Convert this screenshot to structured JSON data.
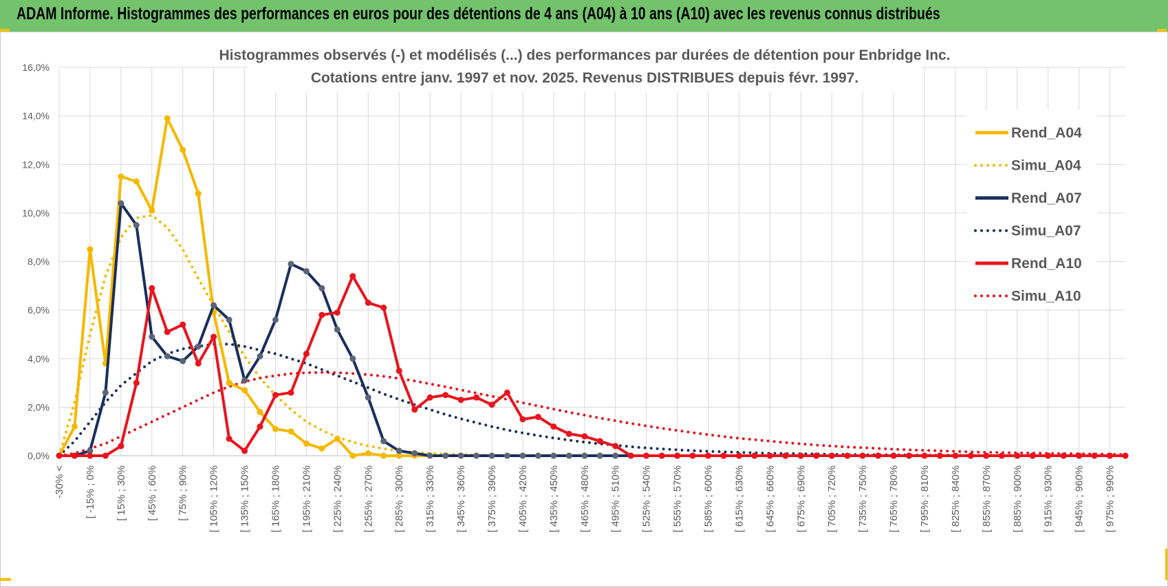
{
  "header": {
    "title": "ADAM Informe. Histogrammes des performances en euros pour des détentions de 4 ans (A04) à 10 ans (A10) avec les revenus connus distribués"
  },
  "chart_data": {
    "type": "line",
    "title_lines": [
      "Histogrammes observés (-) et modélisés (...) des performances par durées de détention pour Enbridge Inc.",
      "Cotations entre janv. 1997 et nov. 2025. Revenus DISTRIBUES depuis févr. 1997."
    ],
    "ylim": [
      0,
      16
    ],
    "y_ticks": [
      "0,0%",
      "2,0%",
      "4,0%",
      "6,0%",
      "8,0%",
      "10,0%",
      "12,0%",
      "14,0%",
      "16,0%"
    ],
    "x_tick_labels": [
      "-30% <",
      "[ -15% ; 0%",
      "[ 15% ; 30%",
      "[ 45% ; 60%",
      "[ 75% ; 90%",
      "[ 105% ; 120%",
      "[ 135% ; 150%",
      "[ 165% ; 180%",
      "[ 195% ; 210%",
      "[ 225% ; 240%",
      "[ 255% ; 270%",
      "[ 285% ; 300%",
      "[ 315% ; 330%",
      "[ 345% ; 360%",
      "[ 375% ; 390%",
      "[ 405% ; 420%",
      "[ 435% ; 450%",
      "[ 465% ; 480%",
      "[ 495% ; 510%",
      "[ 525% ; 540%",
      "[ 555% ; 570%",
      "[ 585% ; 600%",
      "[ 615% ; 630%",
      "[ 645% ; 660%",
      "[ 675% ; 690%",
      "[ 705% ; 720%",
      "[ 735% ; 750%",
      "[ 765% ; 780%",
      "[ 795% ; 810%",
      "[ 825% ; 840%",
      "[ 855% ; 870%",
      "[ 885% ; 900%",
      "[ 915% ; 930%",
      "[ 945% ; 960%",
      "[ 975% ; 990%"
    ],
    "n_bins": 70,
    "series": [
      {
        "name": "Rend_A04",
        "style": "solid",
        "color": "#f5b800",
        "values": [
          0.0,
          1.2,
          8.5,
          3.8,
          11.5,
          11.3,
          10.1,
          13.9,
          12.6,
          10.8,
          5.9,
          3.0,
          2.7,
          1.8,
          1.1,
          1.0,
          0.5,
          0.3,
          0.7,
          0.0,
          0.1,
          0.0,
          0.0,
          0.0,
          0.0,
          0.0,
          0.0,
          0.0,
          0.0,
          0.0,
          0.0,
          0.0,
          0.0,
          0.0,
          0.0,
          0.0,
          0.0,
          0.0,
          0.0,
          0.0,
          0.0,
          0.0,
          0.0,
          0.0,
          0.0,
          0.0,
          0.0,
          0.0,
          0.0,
          0.0,
          0.0,
          0.0,
          0.0,
          0.0,
          0.0,
          0.0,
          0.0,
          0.0,
          0.0,
          0.0,
          0.0,
          0.0,
          0.0,
          0.0,
          0.0,
          0.0,
          0.0,
          0.0,
          0.0,
          0.0
        ]
      },
      {
        "name": "Simu_A04",
        "style": "dotted",
        "color": "#f5b800",
        "values": [
          0.0,
          2.2,
          5.0,
          7.4,
          9.0,
          9.8,
          9.9,
          9.4,
          8.5,
          7.3,
          6.2,
          5.1,
          4.1,
          3.2,
          2.5,
          1.9,
          1.4,
          1.05,
          0.77,
          0.56,
          0.4,
          0.29,
          0.2,
          0.14,
          0.1,
          0.07,
          0.05,
          0.03,
          0.02,
          0.0,
          0.0,
          0.0,
          0.0,
          0.0,
          0.0,
          0.0,
          0.0,
          0.0,
          0.0,
          0.0,
          0.0,
          0.0,
          0.0,
          0.0,
          0.0,
          0.0,
          0.0,
          0.0,
          0.0,
          0.0,
          0.0,
          0.0,
          0.0,
          0.0,
          0.0,
          0.0,
          0.0,
          0.0,
          0.0,
          0.0,
          0.0,
          0.0,
          0.0,
          0.0,
          0.0,
          0.0,
          0.0,
          0.0,
          0.0,
          0.0
        ]
      },
      {
        "name": "Rend_A07",
        "style": "solid",
        "color": "#1a2e5c",
        "values": [
          0.0,
          0.0,
          0.2,
          2.6,
          10.4,
          9.5,
          4.9,
          4.1,
          3.9,
          4.5,
          6.2,
          5.6,
          3.1,
          4.1,
          5.6,
          7.9,
          7.6,
          6.9,
          5.2,
          4.0,
          2.4,
          0.6,
          0.2,
          0.1,
          0.0,
          0.0,
          0.0,
          0.0,
          0.0,
          0.0,
          0.0,
          0.0,
          0.0,
          0.0,
          0.0,
          0.0,
          0.0,
          0.0,
          0.0,
          0.0,
          0.0,
          0.0,
          0.0,
          0.0,
          0.0,
          0.0,
          0.0,
          0.0,
          0.0,
          0.0,
          0.0,
          0.0,
          0.0,
          0.0,
          0.0,
          0.0,
          0.0,
          0.0,
          0.0,
          0.0,
          0.0,
          0.0,
          0.0,
          0.0,
          0.0,
          0.0,
          0.0,
          0.0,
          0.0,
          0.0
        ]
      },
      {
        "name": "Simu_A07",
        "style": "dotted",
        "color": "#1a2e5c",
        "values": [
          0.0,
          0.6,
          1.4,
          2.2,
          2.9,
          3.4,
          3.9,
          4.2,
          4.4,
          4.5,
          4.6,
          4.6,
          4.5,
          4.35,
          4.2,
          4.0,
          3.8,
          3.55,
          3.3,
          3.05,
          2.8,
          2.55,
          2.32,
          2.1,
          1.9,
          1.7,
          1.52,
          1.36,
          1.2,
          1.06,
          0.94,
          0.83,
          0.73,
          0.64,
          0.56,
          0.49,
          0.43,
          0.37,
          0.32,
          0.28,
          0.24,
          0.21,
          0.18,
          0.16,
          0.14,
          0.12,
          0.1,
          0.09,
          0.08,
          0.07,
          0.06,
          0.05,
          0.04,
          0.04,
          0.03,
          0.03,
          0.02,
          0.02,
          0.02,
          0.01,
          0.01,
          0.01,
          0.01,
          0.01,
          0.0,
          0.0,
          0.0,
          0.0,
          0.0,
          0.0
        ]
      },
      {
        "name": "Rend_A10",
        "style": "solid",
        "color": "#e8141e",
        "values": [
          0.0,
          0.0,
          0.0,
          0.0,
          0.4,
          3.0,
          6.9,
          5.1,
          5.4,
          3.8,
          4.9,
          0.7,
          0.2,
          1.2,
          2.5,
          2.6,
          4.2,
          5.8,
          5.9,
          7.4,
          6.3,
          6.1,
          3.5,
          1.9,
          2.4,
          2.5,
          2.3,
          2.4,
          2.1,
          2.6,
          1.5,
          1.6,
          1.2,
          0.9,
          0.8,
          0.6,
          0.4,
          0.0,
          0.0,
          0.0,
          0.0,
          0.0,
          0.0,
          0.0,
          0.0,
          0.0,
          0.0,
          0.0,
          0.0,
          0.0,
          0.0,
          0.0,
          0.0,
          0.0,
          0.0,
          0.0,
          0.0,
          0.0,
          0.0,
          0.0,
          0.0,
          0.0,
          0.0,
          0.0,
          0.0,
          0.0,
          0.0,
          0.0,
          0.0,
          0.0
        ]
      },
      {
        "name": "Simu_A10",
        "style": "dotted",
        "color": "#e8141e",
        "values": [
          0.0,
          0.1,
          0.3,
          0.5,
          0.8,
          1.1,
          1.4,
          1.7,
          2.0,
          2.3,
          2.6,
          2.85,
          3.05,
          3.2,
          3.3,
          3.38,
          3.42,
          3.43,
          3.42,
          3.39,
          3.34,
          3.27,
          3.18,
          3.08,
          2.96,
          2.84,
          2.71,
          2.58,
          2.45,
          2.32,
          2.18,
          2.05,
          1.92,
          1.79,
          1.67,
          1.55,
          1.44,
          1.33,
          1.23,
          1.13,
          1.04,
          0.95,
          0.87,
          0.79,
          0.72,
          0.66,
          0.6,
          0.54,
          0.49,
          0.44,
          0.4,
          0.36,
          0.33,
          0.3,
          0.27,
          0.24,
          0.22,
          0.2,
          0.18,
          0.16,
          0.14,
          0.13,
          0.12,
          0.11,
          0.1,
          0.09,
          0.08,
          0.07,
          0.06,
          0.05
        ]
      }
    ],
    "legend": [
      "Rend_A04",
      "Simu_A04",
      "Rend_A07",
      "Simu_A07",
      "Rend_A10",
      "Simu_A10"
    ],
    "legend_position": "right",
    "grid": true
  }
}
